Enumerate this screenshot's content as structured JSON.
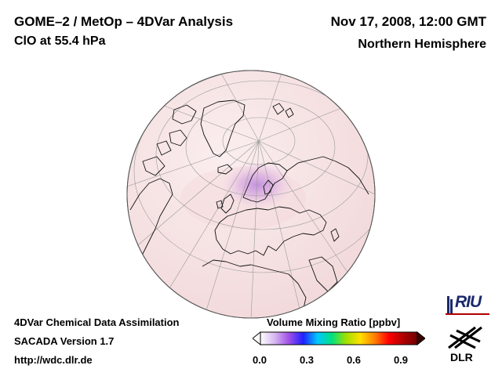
{
  "header": {
    "title": "GOME–2 / MetOp – 4DVar Analysis",
    "species": "ClO at 55.4 hPa",
    "datetime": "Nov 17, 2008, 12:00 GMT",
    "region": "Northern Hemisphere"
  },
  "footer": {
    "line1": "4DVar Chemical Data Assimilation",
    "line2": "SACADA Version 1.7",
    "url": "http://wdc.dlr.de"
  },
  "colorbar": {
    "label": "Volume Mixing Ratio [ppbv]",
    "ticks": [
      "0.0",
      "0.3",
      "0.6",
      "0.9"
    ],
    "min": 0.0,
    "max": 1.0,
    "colors": [
      "#ffffff",
      "#d6b8f0",
      "#a050e8",
      "#2020ff",
      "#00c8ff",
      "#00e080",
      "#a0e000",
      "#ffe000",
      "#ff8000",
      "#ff0000",
      "#b00000",
      "#700000"
    ]
  },
  "map": {
    "projection": "orthographic",
    "field_color": "#f7e4e4",
    "enhancement_region": "Scandinavia / Baltic",
    "enhancement_value": 0.25,
    "enhancement_color": "#b870e0"
  },
  "logos": {
    "riu_text": "RIU",
    "dlr_text": "DLR"
  }
}
